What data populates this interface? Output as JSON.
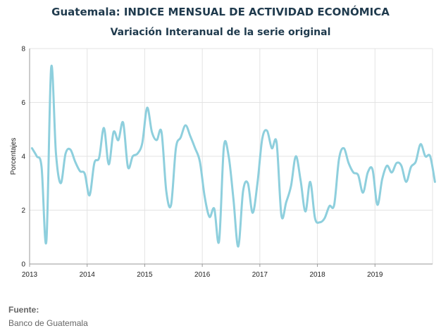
{
  "chart_data": {
    "type": "line",
    "title": "Guatemala: INDICE MENSUAL DE ACTIVIDAD ECONÓMICA",
    "subtitle": "Variación Interanual de la serie original",
    "ylabel": "Porcentajes",
    "xlabel": "",
    "ylim": [
      0,
      8
    ],
    "yticks": [
      "0",
      "2",
      "4",
      "6",
      "8"
    ],
    "xticks": [
      "2013",
      "2014",
      "2015",
      "2016",
      "2017",
      "2018",
      "2019"
    ],
    "x_start": "2013-01",
    "grid": true,
    "legend": "none",
    "line_color": "#8ecfdd",
    "series": [
      {
        "values": [
          4.3,
          4.0,
          3.6,
          0.85,
          7.3,
          4.1,
          3.0,
          4.1,
          4.25,
          3.8,
          3.45,
          3.35,
          2.55,
          3.75,
          3.95,
          5.05,
          3.7,
          4.9,
          4.6,
          5.25,
          3.6,
          4.0,
          4.1,
          4.5,
          5.8,
          4.9,
          4.6,
          4.9,
          2.7,
          2.2,
          4.3,
          4.7,
          5.15,
          4.75,
          4.3,
          3.8,
          2.5,
          1.75,
          2.05,
          0.85,
          4.35,
          4.0,
          2.4,
          0.65,
          2.7,
          3.0,
          1.9,
          3.0,
          4.65,
          4.95,
          4.3,
          4.5,
          1.8,
          2.3,
          2.9,
          4.0,
          3.1,
          1.95,
          3.05,
          1.7,
          1.55,
          1.7,
          2.15,
          2.2,
          3.9,
          4.3,
          3.75,
          3.4,
          3.3,
          2.65,
          3.4,
          3.5,
          2.2,
          3.15,
          3.65,
          3.4,
          3.75,
          3.65,
          3.05,
          3.6,
          3.8,
          4.45,
          4.0,
          4.0,
          3.05
        ]
      }
    ]
  },
  "footer": {
    "source_label": "Fuente:",
    "source_text": "Banco de Guatemala"
  }
}
